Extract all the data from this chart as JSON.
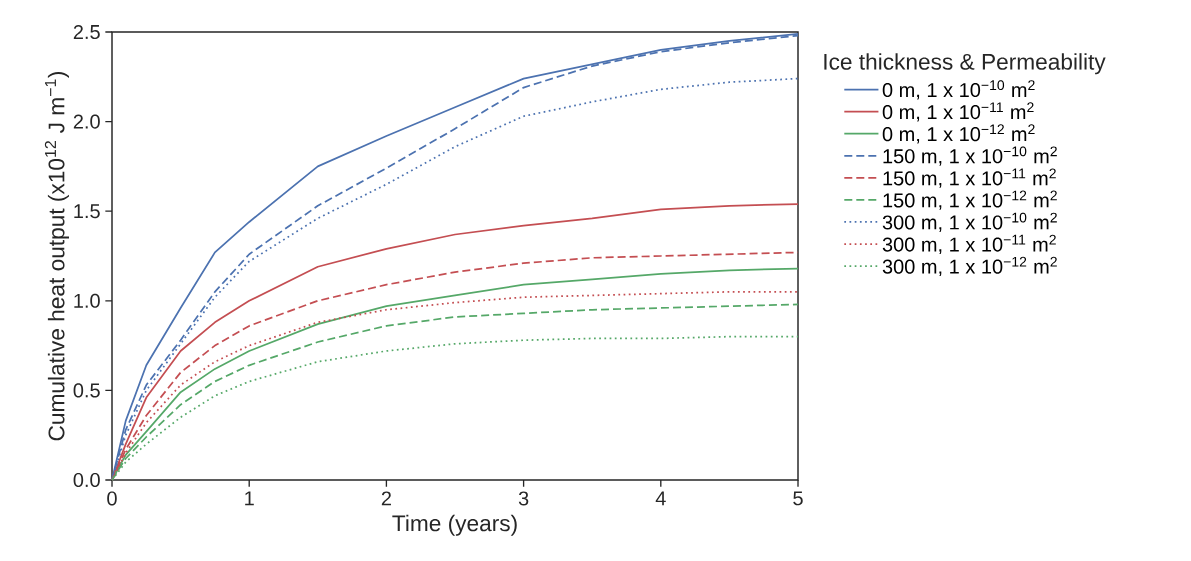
{
  "chart_data": {
    "type": "line",
    "xlabel": "Time (years)",
    "ylabel": "Cumulative heat output (x10$^{12}$ J m$^{−1}$)",
    "legend_title": "Ice thickness & Permeability",
    "legend": "right",
    "x": [
      0,
      0.1,
      0.25,
      0.5,
      0.75,
      1,
      1.5,
      2,
      2.5,
      3,
      3.5,
      4,
      4.5,
      5
    ],
    "xlim": [
      0,
      5
    ],
    "xticks": [
      0,
      1,
      2,
      3,
      4,
      5
    ],
    "ylim": [
      0,
      2.5
    ],
    "yticks": [
      {
        "value": 0,
        "label": "0.0"
      },
      0.5,
      {
        "value": 1,
        "label": "1.0"
      },
      1.5,
      {
        "value": 2,
        "label": "2.0"
      },
      2.5
    ],
    "series": [
      {
        "name": "0 m, 1 x 10$^{−10}$ m$^{2}$",
        "color": "#4c72b0",
        "line_style": "solid",
        "values": [
          0,
          0.33,
          0.64,
          0.96,
          1.27,
          1.44,
          1.75,
          1.92,
          2.08,
          2.24,
          2.32,
          2.4,
          2.45,
          2.49
        ]
      },
      {
        "name": "0 m, 1 x 10$^{−11}$ m$^{2}$",
        "color": "#c44e52",
        "line_style": "solid",
        "values": [
          0,
          0.2,
          0.46,
          0.72,
          0.88,
          1.0,
          1.19,
          1.29,
          1.37,
          1.42,
          1.46,
          1.51,
          1.53,
          1.54
        ]
      },
      {
        "name": "0 m, 1 x 10$^{−12}$ m$^{2}$",
        "color": "#55a868",
        "line_style": "solid",
        "values": [
          0,
          0.14,
          0.27,
          0.49,
          0.62,
          0.72,
          0.87,
          0.97,
          1.03,
          1.09,
          1.12,
          1.15,
          1.17,
          1.18
        ]
      },
      {
        "name": "150 m, 1 x 10$^{−10}$ m$^{2}$",
        "color": "#4c72b0",
        "line_style": "dashed",
        "values": [
          0,
          0.28,
          0.53,
          0.78,
          1.05,
          1.26,
          1.53,
          1.74,
          1.96,
          2.19,
          2.31,
          2.39,
          2.44,
          2.48
        ]
      },
      {
        "name": "150 m, 1 x 10$^{−11}$ m$^{2}$",
        "color": "#c44e52",
        "line_style": "dashed",
        "values": [
          0,
          0.17,
          0.36,
          0.6,
          0.75,
          0.86,
          1.0,
          1.09,
          1.16,
          1.21,
          1.24,
          1.25,
          1.26,
          1.27
        ]
      },
      {
        "name": "150 m, 1 x 10$^{−12}$ m$^{2}$",
        "color": "#55a868",
        "line_style": "dashed",
        "values": [
          0,
          0.12,
          0.24,
          0.42,
          0.55,
          0.64,
          0.77,
          0.86,
          0.91,
          0.93,
          0.95,
          0.96,
          0.97,
          0.98
        ]
      },
      {
        "name": "300 m, 1 x 10$^{−10}$ m$^{2}$",
        "color": "#4c72b0",
        "line_style": "dotted",
        "values": [
          0,
          0.25,
          0.5,
          0.76,
          1.02,
          1.22,
          1.46,
          1.65,
          1.86,
          2.03,
          2.11,
          2.18,
          2.22,
          2.24
        ]
      },
      {
        "name": "300 m, 1 x 10$^{−11}$ m$^{2}$",
        "color": "#c44e52",
        "line_style": "dotted",
        "values": [
          0,
          0.15,
          0.32,
          0.53,
          0.66,
          0.75,
          0.88,
          0.95,
          0.99,
          1.02,
          1.03,
          1.04,
          1.05,
          1.05
        ]
      },
      {
        "name": "300 m, 1 x 10$^{−12}$ m$^{2}$",
        "color": "#55a868",
        "line_style": "dotted",
        "values": [
          0,
          0.1,
          0.2,
          0.35,
          0.47,
          0.55,
          0.66,
          0.72,
          0.76,
          0.78,
          0.79,
          0.79,
          0.8,
          0.8
        ]
      }
    ]
  }
}
